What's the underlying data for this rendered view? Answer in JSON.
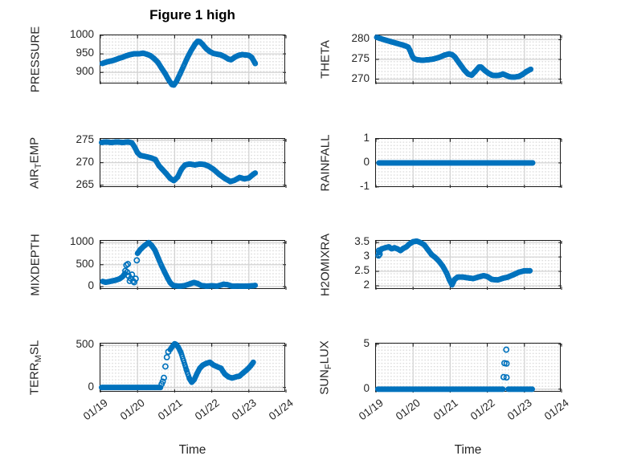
{
  "figure": {
    "title": "Figure 1 high",
    "marker_color": "#0072BD",
    "axes_color": "#1c1c1c",
    "major_grid_color": "#d4d4d4",
    "minor_grid_dot_color": "#dcdcdc",
    "background_color": "#ffffff",
    "marker_style": "hollow-circle"
  },
  "x_axis": {
    "label": "Time",
    "tick_labels": [
      "01/19",
      "01/20",
      "01/21",
      "01/22",
      "01/23",
      "01/24"
    ],
    "range_days": [
      0,
      5
    ]
  },
  "chart_data": [
    {
      "type": "scatter",
      "name": "pressure",
      "row": 0,
      "col": 0,
      "label_parts": [
        {
          "t": "PRESSURE"
        }
      ],
      "ylim": [
        868,
        1000
      ],
      "yticks": [
        [
          900,
          "900"
        ],
        [
          950,
          "950"
        ],
        [
          1000,
          "1000"
        ]
      ],
      "segments": [
        [
          [
            0.05,
            924
          ],
          [
            0.1,
            926
          ],
          [
            0.2,
            929
          ],
          [
            0.3,
            931
          ],
          [
            0.4,
            934
          ],
          [
            0.5,
            938
          ],
          [
            0.6,
            941
          ],
          [
            0.7,
            945
          ],
          [
            0.8,
            948
          ],
          [
            0.9,
            950
          ],
          [
            1.0,
            950
          ],
          [
            1.1,
            951
          ],
          [
            1.15,
            952
          ],
          [
            1.25,
            949
          ],
          [
            1.35,
            945
          ],
          [
            1.45,
            937
          ],
          [
            1.55,
            927
          ],
          [
            1.65,
            911
          ],
          [
            1.75,
            896
          ],
          [
            1.85,
            878
          ],
          [
            1.93,
            867
          ],
          [
            1.98,
            866
          ],
          [
            2.05,
            876
          ],
          [
            2.15,
            897
          ],
          [
            2.25,
            919
          ],
          [
            2.35,
            941
          ],
          [
            2.45,
            960
          ],
          [
            2.55,
            976
          ],
          [
            2.62,
            984
          ],
          [
            2.68,
            983
          ],
          [
            2.75,
            976
          ],
          [
            2.85,
            964
          ],
          [
            2.95,
            956
          ],
          [
            3.05,
            951
          ],
          [
            3.15,
            949
          ],
          [
            3.25,
            947
          ],
          [
            3.35,
            942
          ],
          [
            3.45,
            936
          ],
          [
            3.52,
            934
          ],
          [
            3.62,
            941
          ],
          [
            3.72,
            946
          ],
          [
            3.82,
            948
          ],
          [
            3.92,
            947
          ],
          [
            4.0,
            946
          ],
          [
            4.08,
            940
          ],
          [
            4.17,
            924
          ]
        ]
      ],
      "extras": []
    },
    {
      "type": "scatter",
      "name": "theta",
      "row": 0,
      "col": 1,
      "label_parts": [
        {
          "t": "THETA"
        }
      ],
      "ylim": [
        268.7,
        281.1
      ],
      "yticks": [
        [
          270,
          "270"
        ],
        [
          275,
          "275"
        ],
        [
          280,
          "280"
        ]
      ],
      "segments": [
        [
          [
            0.02,
            280.6
          ],
          [
            0.12,
            280.3
          ],
          [
            0.25,
            279.9
          ],
          [
            0.4,
            279.5
          ],
          [
            0.55,
            279.1
          ],
          [
            0.7,
            278.7
          ],
          [
            0.8,
            278.4
          ],
          [
            0.87,
            278.1
          ],
          [
            0.92,
            277.2
          ],
          [
            0.97,
            276.0
          ],
          [
            1.02,
            275.2
          ],
          [
            1.12,
            274.9
          ],
          [
            1.25,
            274.8
          ],
          [
            1.4,
            274.9
          ],
          [
            1.55,
            275.1
          ],
          [
            1.7,
            275.5
          ],
          [
            1.85,
            276.1
          ],
          [
            1.97,
            276.4
          ],
          [
            2.05,
            276.2
          ],
          [
            2.12,
            275.7
          ],
          [
            2.18,
            274.9
          ],
          [
            2.28,
            273.6
          ],
          [
            2.38,
            272.3
          ],
          [
            2.48,
            271.3
          ],
          [
            2.58,
            271.0
          ],
          [
            2.68,
            272.0
          ],
          [
            2.78,
            273.1
          ],
          [
            2.83,
            273.1
          ],
          [
            2.93,
            272.2
          ],
          [
            3.03,
            271.5
          ],
          [
            3.13,
            271.0
          ],
          [
            3.23,
            270.9
          ],
          [
            3.33,
            271.0
          ],
          [
            3.42,
            271.3
          ],
          [
            3.5,
            271.0
          ],
          [
            3.6,
            270.6
          ],
          [
            3.72,
            270.5
          ],
          [
            3.85,
            270.7
          ],
          [
            3.95,
            271.2
          ],
          [
            4.05,
            271.9
          ],
          [
            4.17,
            272.5
          ]
        ]
      ],
      "extras": []
    },
    {
      "type": "scatter",
      "name": "air-temp",
      "row": 1,
      "col": 0,
      "label_parts": [
        {
          "t": "AIR"
        },
        {
          "t": "T",
          "sub": true
        },
        {
          "t": "EMP"
        }
      ],
      "ylim": [
        264.4,
        275.3
      ],
      "yticks": [
        [
          265,
          "265"
        ],
        [
          270,
          "270"
        ],
        [
          275,
          "275"
        ]
      ],
      "segments": [
        [
          [
            0.03,
            274.5
          ],
          [
            0.15,
            274.6
          ],
          [
            0.3,
            274.5
          ],
          [
            0.45,
            274.6
          ],
          [
            0.6,
            274.5
          ],
          [
            0.75,
            274.6
          ],
          [
            0.85,
            274.4
          ],
          [
            0.92,
            273.5
          ],
          [
            1.0,
            272.2
          ],
          [
            1.08,
            271.6
          ],
          [
            1.2,
            271.4
          ],
          [
            1.35,
            271.1
          ],
          [
            1.48,
            270.7
          ],
          [
            1.58,
            269.3
          ],
          [
            1.68,
            268.4
          ],
          [
            1.78,
            267.5
          ],
          [
            1.88,
            266.5
          ],
          [
            1.98,
            266.0
          ],
          [
            2.08,
            266.8
          ],
          [
            2.18,
            268.5
          ],
          [
            2.28,
            269.5
          ],
          [
            2.4,
            269.7
          ],
          [
            2.55,
            269.5
          ],
          [
            2.68,
            269.7
          ],
          [
            2.8,
            269.6
          ],
          [
            2.92,
            269.2
          ],
          [
            3.05,
            268.5
          ],
          [
            3.2,
            267.4
          ],
          [
            3.35,
            266.5
          ],
          [
            3.5,
            265.8
          ],
          [
            3.62,
            266.1
          ],
          [
            3.75,
            266.7
          ],
          [
            3.88,
            266.4
          ],
          [
            4.0,
            266.6
          ],
          [
            4.1,
            267.3
          ],
          [
            4.17,
            267.7
          ]
        ]
      ],
      "extras": []
    },
    {
      "type": "scatter",
      "name": "rainfall",
      "row": 1,
      "col": 1,
      "label_parts": [
        {
          "t": "RAINFALL"
        }
      ],
      "ylim": [
        -1.04,
        1.0
      ],
      "yticks": [
        [
          -1,
          "-1"
        ],
        [
          0,
          "0"
        ],
        [
          1,
          "1"
        ]
      ],
      "segments": [
        [
          [
            0.08,
            0
          ],
          [
            4.22,
            0
          ]
        ]
      ],
      "extras": []
    },
    {
      "type": "scatter",
      "name": "mixdepth",
      "row": 2,
      "col": 0,
      "label_parts": [
        {
          "t": "MIXDEPTH"
        }
      ],
      "ylim": [
        -72,
        1045
      ],
      "yticks": [
        [
          0,
          "0"
        ],
        [
          500,
          "500"
        ],
        [
          1000,
          "1000"
        ]
      ],
      "segments": [
        [
          [
            0.06,
            120
          ],
          [
            0.14,
            100
          ],
          [
            0.22,
            112
          ],
          [
            0.32,
            130
          ],
          [
            0.42,
            150
          ],
          [
            0.52,
            180
          ],
          [
            0.6,
            230
          ],
          [
            0.66,
            300
          ]
        ],
        [
          [
            1.0,
            760
          ],
          [
            1.08,
            850
          ],
          [
            1.18,
            930
          ],
          [
            1.3,
            1005
          ],
          [
            1.38,
            940
          ],
          [
            1.47,
            830
          ],
          [
            1.56,
            650
          ],
          [
            1.64,
            490
          ],
          [
            1.72,
            350
          ],
          [
            1.8,
            210
          ],
          [
            1.88,
            90
          ],
          [
            1.96,
            25
          ],
          [
            2.1,
            10
          ],
          [
            2.25,
            18
          ],
          [
            2.42,
            65
          ],
          [
            2.52,
            95
          ],
          [
            2.62,
            70
          ],
          [
            2.72,
            25
          ],
          [
            2.85,
            12
          ],
          [
            3.0,
            18
          ],
          [
            3.15,
            12
          ],
          [
            3.32,
            55
          ],
          [
            3.42,
            45
          ],
          [
            3.55,
            10
          ],
          [
            3.7,
            14
          ],
          [
            3.85,
            10
          ],
          [
            4.0,
            14
          ],
          [
            4.1,
            18
          ],
          [
            4.17,
            28
          ]
        ]
      ],
      "extras": [
        [
          0.67,
          360
        ],
        [
          0.7,
          490
        ],
        [
          0.74,
          515
        ],
        [
          0.72,
          330
        ],
        [
          0.76,
          245
        ],
        [
          0.79,
          130
        ],
        [
          0.82,
          185
        ],
        [
          0.85,
          275
        ],
        [
          0.88,
          128
        ],
        [
          0.91,
          100
        ],
        [
          0.95,
          180
        ],
        [
          0.98,
          600
        ]
      ]
    },
    {
      "type": "scatter",
      "name": "h2omixra",
      "row": 2,
      "col": 1,
      "label_parts": [
        {
          "t": "H2OMIXRA"
        }
      ],
      "ylim": [
        1.86,
        3.56
      ],
      "yticks": [
        [
          2,
          "2"
        ],
        [
          2.5,
          "2.5"
        ],
        [
          3,
          "3"
        ],
        [
          3.5,
          "3.5"
        ]
      ],
      "segments": [
        [
          [
            0.08,
            3.15
          ],
          [
            0.15,
            3.28
          ],
          [
            0.25,
            3.32
          ],
          [
            0.35,
            3.35
          ],
          [
            0.42,
            3.28
          ],
          [
            0.5,
            3.32
          ],
          [
            0.58,
            3.28
          ],
          [
            0.66,
            3.22
          ],
          [
            0.74,
            3.3
          ],
          [
            0.82,
            3.35
          ],
          [
            0.9,
            3.45
          ],
          [
            1.0,
            3.53
          ],
          [
            1.1,
            3.55
          ],
          [
            1.2,
            3.5
          ],
          [
            1.3,
            3.42
          ],
          [
            1.4,
            3.25
          ],
          [
            1.5,
            3.08
          ],
          [
            1.6,
            2.98
          ],
          [
            1.7,
            2.85
          ],
          [
            1.8,
            2.68
          ],
          [
            1.9,
            2.45
          ],
          [
            1.98,
            2.2
          ],
          [
            2.05,
            2.03
          ],
          [
            2.12,
            2.22
          ],
          [
            2.2,
            2.3
          ],
          [
            2.35,
            2.3
          ],
          [
            2.5,
            2.27
          ],
          [
            2.62,
            2.25
          ],
          [
            2.75,
            2.3
          ],
          [
            2.9,
            2.35
          ],
          [
            3.0,
            2.32
          ],
          [
            3.12,
            2.22
          ],
          [
            3.28,
            2.2
          ],
          [
            3.42,
            2.26
          ],
          [
            3.55,
            2.3
          ],
          [
            3.7,
            2.38
          ],
          [
            3.85,
            2.47
          ],
          [
            4.0,
            2.52
          ],
          [
            4.15,
            2.52
          ]
        ]
      ],
      "extras": [
        [
          0.07,
          3.05
        ],
        [
          0.08,
          3.22
        ],
        [
          0.1,
          3.1
        ]
      ]
    },
    {
      "type": "scatter",
      "name": "terr-msl",
      "row": 3,
      "col": 0,
      "label_parts": [
        {
          "t": "TERR"
        },
        {
          "t": "M",
          "sub": true
        },
        {
          "t": "SL"
        }
      ],
      "ylim": [
        -60,
        522
      ],
      "yticks": [
        [
          0,
          "0"
        ],
        [
          500,
          "500"
        ]
      ],
      "segments": [
        [
          [
            0.03,
            0
          ],
          [
            1.62,
            0
          ]
        ],
        [
          [
            1.88,
            450
          ],
          [
            1.95,
            495
          ],
          [
            2.0,
            520
          ],
          [
            2.04,
            512
          ],
          [
            2.1,
            478
          ],
          [
            2.17,
            415
          ],
          [
            2.24,
            320
          ],
          [
            2.32,
            205
          ],
          [
            2.4,
            105
          ],
          [
            2.46,
            62
          ],
          [
            2.53,
            95
          ],
          [
            2.6,
            165
          ],
          [
            2.68,
            230
          ],
          [
            2.76,
            266
          ],
          [
            2.86,
            288
          ],
          [
            2.95,
            300
          ],
          [
            3.05,
            266
          ],
          [
            3.15,
            246
          ],
          [
            3.25,
            228
          ],
          [
            3.35,
            160
          ],
          [
            3.45,
            126
          ],
          [
            3.55,
            112
          ],
          [
            3.65,
            126
          ],
          [
            3.75,
            136
          ],
          [
            3.85,
            175
          ],
          [
            3.95,
            212
          ],
          [
            4.05,
            258
          ],
          [
            4.12,
            300
          ]
        ]
      ],
      "extras": [
        [
          1.65,
          40
        ],
        [
          1.68,
          70
        ],
        [
          1.71,
          115
        ],
        [
          1.75,
          250
        ],
        [
          1.79,
          360
        ],
        [
          1.83,
          425
        ]
      ]
    },
    {
      "type": "scatter",
      "name": "sun-flux",
      "row": 3,
      "col": 1,
      "label_parts": [
        {
          "t": "SUN"
        },
        {
          "t": "F",
          "sub": true
        },
        {
          "t": "LUX"
        }
      ],
      "ylim": [
        -0.38,
        5.08
      ],
      "yticks": [
        [
          0,
          "0"
        ],
        [
          5,
          "5"
        ]
      ],
      "segments": [
        [
          [
            0.05,
            0
          ],
          [
            3.42,
            0
          ]
        ],
        [
          [
            3.56,
            0
          ],
          [
            4.21,
            0
          ]
        ]
      ],
      "extras": [
        [
          3.51,
          4.4
        ],
        [
          3.46,
          2.9
        ],
        [
          3.52,
          2.85
        ],
        [
          3.44,
          1.35
        ],
        [
          3.52,
          1.3
        ]
      ]
    }
  ]
}
